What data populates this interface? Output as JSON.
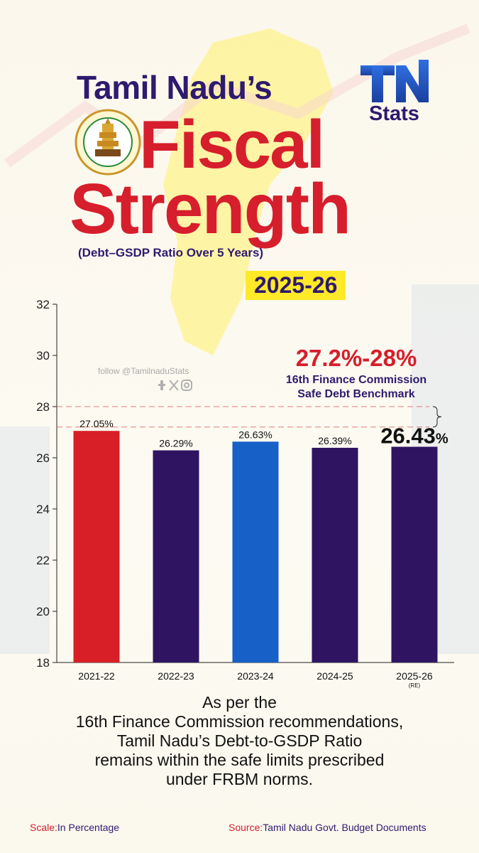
{
  "header": {
    "title_line1": "Tamil Nadu’s",
    "title_line2": "Fiscal",
    "title_line3": "Strength",
    "subtitle": "(Debt–GSDP Ratio Over 5 Years)",
    "year": "2025-26"
  },
  "logo": {
    "mark": "TN",
    "word": "Stats"
  },
  "watermark": {
    "follow": "follow @TamilnaduStats"
  },
  "benchmark": {
    "range": "27.2%-28%",
    "label_line1": "16th Finance Commission",
    "label_line2": "Safe Debt Benchmark",
    "lower": 27.2,
    "upper": 28
  },
  "chart_data": {
    "type": "bar",
    "categories": [
      "2021-22",
      "2022-23",
      "2023-24",
      "2024-25",
      "2025-26"
    ],
    "category_notes": [
      "",
      "",
      "",
      "",
      "(RE)"
    ],
    "values": [
      27.05,
      26.29,
      26.63,
      26.39,
      26.43
    ],
    "data_labels": [
      "27.05%",
      "26.29%",
      "26.63%",
      "26.39%",
      "26.43"
    ],
    "highlight_suffix": "%",
    "bar_colors": [
      "#d81e26",
      "#2f1462",
      "#1660c8",
      "#2f1462",
      "#2f1462"
    ],
    "ylim": [
      18,
      32
    ],
    "yticks": [
      18,
      20,
      22,
      24,
      26,
      28,
      30,
      32
    ],
    "grid": false
  },
  "conclusion": [
    "As per the",
    "16th Finance Commission recommendations,",
    "Tamil Nadu’s Debt-to-GSDP Ratio",
    "remains within the safe limits prescribed",
    "under FRBM norms."
  ],
  "footer": {
    "scale_label": "Scale:",
    "scale_value": "In Percentage",
    "source_label": "Source:",
    "source_value": "Tamil Nadu Govt. Budget Documents"
  },
  "colors": {
    "navy": "#2e1a6e",
    "red": "#d61e2c",
    "yellow": "#ffe928",
    "blue": "#1660c8"
  }
}
